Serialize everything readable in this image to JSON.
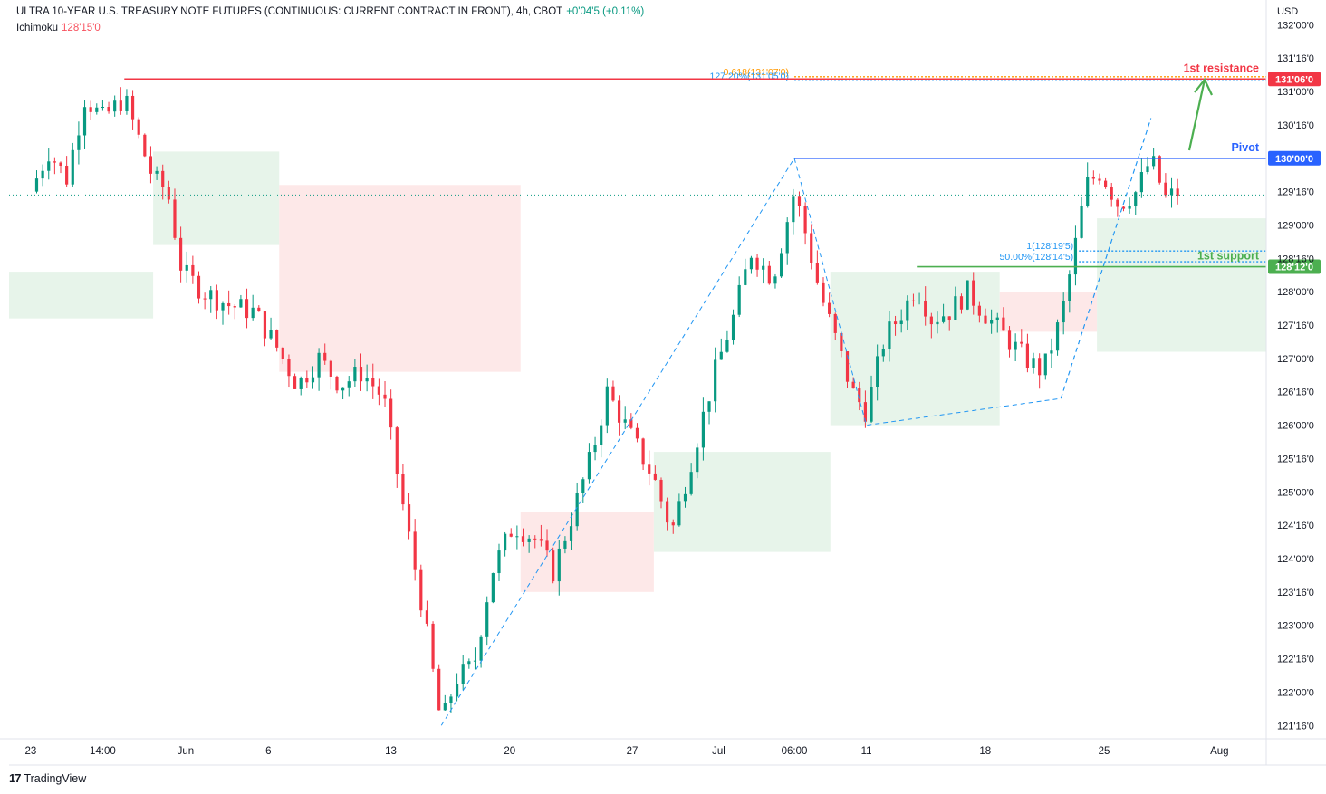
{
  "header": {
    "symbol": "ULTRA 10-YEAR U.S. TREASURY NOTE FUTURES (CONTINUOUS: CURRENT CONTRACT IN FRONT), 4h, CBOT",
    "change": "+0'04'5 (+0.11%)",
    "indicator_name": "Ichimoku",
    "indicator_value": "128'15'0",
    "currency": "USD"
  },
  "branding": {
    "name": "TradingView"
  },
  "colors": {
    "up": "#089981",
    "down": "#f23645",
    "resistance": "#f23645",
    "pivot": "#2962ff",
    "support": "#4caf50",
    "fib": "#2196f3",
    "fib_gold": "#ff9800",
    "cloud_bull": "#e3f2e6",
    "cloud_bear": "#fde4e4"
  },
  "chart_data": {
    "type": "candlestick",
    "y_unit": "price (points'32nds'fraction)",
    "ylim": [
      121.3,
      132.1
    ],
    "y_ticks": [
      {
        "label": "132'00'0",
        "value": 132.0
      },
      {
        "label": "131'16'0",
        "value": 131.5
      },
      {
        "label": "131'00'0",
        "value": 131.0
      },
      {
        "label": "130'16'0",
        "value": 130.5
      },
      {
        "label": "129'16'0",
        "value": 129.5
      },
      {
        "label": "129'00'0",
        "value": 129.0
      },
      {
        "label": "128'16'0",
        "value": 128.5
      },
      {
        "label": "128'00'0",
        "value": 128.0
      },
      {
        "label": "127'16'0",
        "value": 127.5
      },
      {
        "label": "127'00'0",
        "value": 127.0
      },
      {
        "label": "126'16'0",
        "value": 126.5
      },
      {
        "label": "126'00'0",
        "value": 126.0
      },
      {
        "label": "125'16'0",
        "value": 125.5
      },
      {
        "label": "125'00'0",
        "value": 125.0
      },
      {
        "label": "124'16'0",
        "value": 124.5
      },
      {
        "label": "124'00'0",
        "value": 124.0
      },
      {
        "label": "123'16'0",
        "value": 123.5
      },
      {
        "label": "123'00'0",
        "value": 123.0
      },
      {
        "label": "122'16'0",
        "value": 122.5
      },
      {
        "label": "122'00'0",
        "value": 122.0
      },
      {
        "label": "121'16'0",
        "value": 121.5
      }
    ],
    "x_ticks": [
      {
        "label": "23",
        "t": 0
      },
      {
        "label": "14:00",
        "t": 2
      },
      {
        "label": "Jun",
        "t": 4.3
      },
      {
        "label": "6",
        "t": 6.6
      },
      {
        "label": "13",
        "t": 10
      },
      {
        "label": "20",
        "t": 13.3
      },
      {
        "label": "27",
        "t": 16.7
      },
      {
        "label": "Jul",
        "t": 19.1
      },
      {
        "label": "06:00",
        "t": 21.2
      },
      {
        "label": "11",
        "t": 23.2
      },
      {
        "label": "18",
        "t": 26.5
      },
      {
        "label": "25",
        "t": 29.8
      },
      {
        "label": "Aug",
        "t": 33
      }
    ],
    "xlim": [
      -0.6,
      34.3
    ],
    "price_path": [
      [
        0,
        129.5
      ],
      [
        0.5,
        130.1
      ],
      [
        1.0,
        129.7
      ],
      [
        1.5,
        130.9
      ],
      [
        2.0,
        130.6
      ],
      [
        2.6,
        130.9
      ],
      [
        3.0,
        130.3
      ],
      [
        3.4,
        129.7
      ],
      [
        3.8,
        129.5
      ],
      [
        4.2,
        128.3
      ],
      [
        4.8,
        128.0
      ],
      [
        5.5,
        127.8
      ],
      [
        6.2,
        127.7
      ],
      [
        6.8,
        127.2
      ],
      [
        7.4,
        126.6
      ],
      [
        8.0,
        127.0
      ],
      [
        8.6,
        126.6
      ],
      [
        9.2,
        126.8
      ],
      [
        9.8,
        126.4
      ],
      [
        10.4,
        124.6
      ],
      [
        10.9,
        123.2
      ],
      [
        11.4,
        121.5
      ],
      [
        11.8,
        122.2
      ],
      [
        12.3,
        122.4
      ],
      [
        12.8,
        123.8
      ],
      [
        13.4,
        124.5
      ],
      [
        14.0,
        124.3
      ],
      [
        14.5,
        123.8
      ],
      [
        15.0,
        124.6
      ],
      [
        15.6,
        125.6
      ],
      [
        16.0,
        126.5
      ],
      [
        16.6,
        125.9
      ],
      [
        17.3,
        125.2
      ],
      [
        17.8,
        124.4
      ],
      [
        18.4,
        125.6
      ],
      [
        19.0,
        126.8
      ],
      [
        19.5,
        127.6
      ],
      [
        20.0,
        128.6
      ],
      [
        20.6,
        128.2
      ],
      [
        21.2,
        129.5
      ],
      [
        21.5,
        128.9
      ],
      [
        21.9,
        128.0
      ],
      [
        22.4,
        127.2
      ],
      [
        22.8,
        126.5
      ],
      [
        23.2,
        126.2
      ],
      [
        23.7,
        127.3
      ],
      [
        24.2,
        127.7
      ],
      [
        24.6,
        128.1
      ],
      [
        25.0,
        127.6
      ],
      [
        25.5,
        127.7
      ],
      [
        26.0,
        128.0
      ],
      [
        26.6,
        127.6
      ],
      [
        27.1,
        127.3
      ],
      [
        27.6,
        127.0
      ],
      [
        28.1,
        126.8
      ],
      [
        28.6,
        127.6
      ],
      [
        28.9,
        128.4
      ],
      [
        29.3,
        129.6
      ],
      [
        29.7,
        129.8
      ],
      [
        30.2,
        129.3
      ],
      [
        30.7,
        129.5
      ],
      [
        31.1,
        130.0
      ],
      [
        31.5,
        129.4
      ],
      [
        31.9,
        129.5
      ]
    ],
    "ichimoku_cloud_values": [
      {
        "t": [
          -0.6,
          3.4
        ],
        "low": 127.6,
        "high": 128.3,
        "bias": "bull"
      },
      {
        "t": [
          3.4,
          6.9
        ],
        "low": 128.7,
        "high": 130.1,
        "bias": "bull"
      },
      {
        "t": [
          6.9,
          13.6
        ],
        "low": 126.8,
        "high": 129.6,
        "bias": "bear"
      },
      {
        "t": [
          13.6,
          17.3
        ],
        "low": 123.5,
        "high": 124.7,
        "bias": "bear"
      },
      {
        "t": [
          17.3,
          22.2
        ],
        "low": 124.1,
        "high": 125.6,
        "bias": "bull"
      },
      {
        "t": [
          22.2,
          26.9
        ],
        "low": 126.0,
        "high": 128.3,
        "bias": "bull"
      },
      {
        "t": [
          26.9,
          29.6
        ],
        "low": 127.4,
        "high": 128.0,
        "bias": "bear"
      },
      {
        "t": [
          29.6,
          34.3
        ],
        "low": 127.1,
        "high": 129.1,
        "bias": "bull"
      }
    ],
    "levels": [
      {
        "name": "1st resistance",
        "value": 131.1875,
        "price_label": "131'06'0",
        "color": "#f23645"
      },
      {
        "name": "Pivot",
        "value": 130.0,
        "price_label": "130'00'0",
        "color": "#2962ff"
      },
      {
        "name": "1st support",
        "value": 128.375,
        "price_label": "128'12'0",
        "color": "#4caf50"
      }
    ],
    "fib_labels": [
      {
        "text": "0.618(131'07'0)",
        "value": 131.22,
        "color": "#ff9800"
      },
      {
        "text": "127.20%(131'05'0)",
        "value": 131.16,
        "color": "#2196f3"
      },
      {
        "text": "1(128'19'5)",
        "value": 128.61,
        "color": "#2196f3"
      },
      {
        "text": "50.00%(128'14'5)",
        "value": 128.45,
        "color": "#2196f3"
      }
    ],
    "last_price": 129.45
  }
}
